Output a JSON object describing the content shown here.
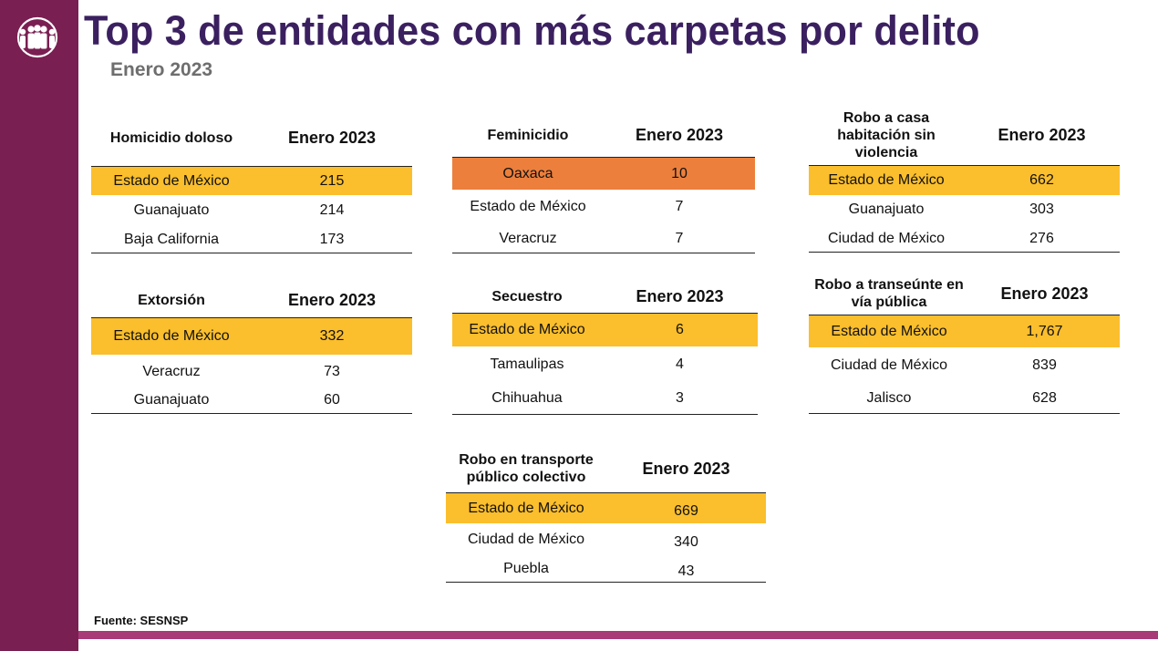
{
  "header": {
    "title": "Top 3 de entidades con más carpetas por delito",
    "subtitle": "Enero 2023"
  },
  "footer": {
    "source": "Fuente: SESNSP"
  },
  "colors": {
    "sidebar": "#7a1f52",
    "title": "#3b2060",
    "highlight": "#fbbe2c",
    "highlight_orange": "#ec7f3c"
  },
  "tables": {
    "homicidio": {
      "header": "Homicidio doloso",
      "period": "Enero 2023",
      "rows": [
        {
          "entity": "Estado de México",
          "value": "215"
        },
        {
          "entity": "Guanajuato",
          "value": "214"
        },
        {
          "entity": "Baja California",
          "value": "173"
        }
      ]
    },
    "extorsion": {
      "header": "Extorsión",
      "period": "Enero 2023",
      "rows": [
        {
          "entity": "Estado de México",
          "value": "332"
        },
        {
          "entity": "Veracruz",
          "value": "73"
        },
        {
          "entity": "Guanajuato",
          "value": "60"
        }
      ]
    },
    "feminicidio": {
      "header": "Feminicidio",
      "period": "Enero 2023",
      "rows": [
        {
          "entity": "Oaxaca",
          "value": "10"
        },
        {
          "entity": "Estado de México",
          "value": "7"
        },
        {
          "entity": "Veracruz",
          "value": "7"
        }
      ]
    },
    "secuestro": {
      "header": "Secuestro",
      "period": "Enero 2023",
      "rows": [
        {
          "entity": "Estado de México",
          "value": "6"
        },
        {
          "entity": "Tamaulipas",
          "value": "4"
        },
        {
          "entity": "Chihuahua",
          "value": "3"
        }
      ]
    },
    "transporte": {
      "header": "Robo en transporte público colectivo",
      "period": "Enero 2023",
      "rows": [
        {
          "entity": "Estado de México",
          "value": "669"
        },
        {
          "entity": "Ciudad de México",
          "value": "340"
        },
        {
          "entity": "Puebla",
          "value": "43"
        }
      ]
    },
    "casa": {
      "header": "Robo a casa habitación sin violencia",
      "period": "Enero 2023",
      "rows": [
        {
          "entity": "Estado de México",
          "value": "662"
        },
        {
          "entity": "Guanajuato",
          "value": "303"
        },
        {
          "entity": "Ciudad de México",
          "value": "276"
        }
      ]
    },
    "transeunte": {
      "header": "Robo a transeúnte en vía pública",
      "period": "Enero 2023",
      "rows": [
        {
          "entity": "Estado de México",
          "value": "1,767"
        },
        {
          "entity": "Ciudad de México",
          "value": "839"
        },
        {
          "entity": "Jalisco",
          "value": "628"
        }
      ]
    }
  }
}
